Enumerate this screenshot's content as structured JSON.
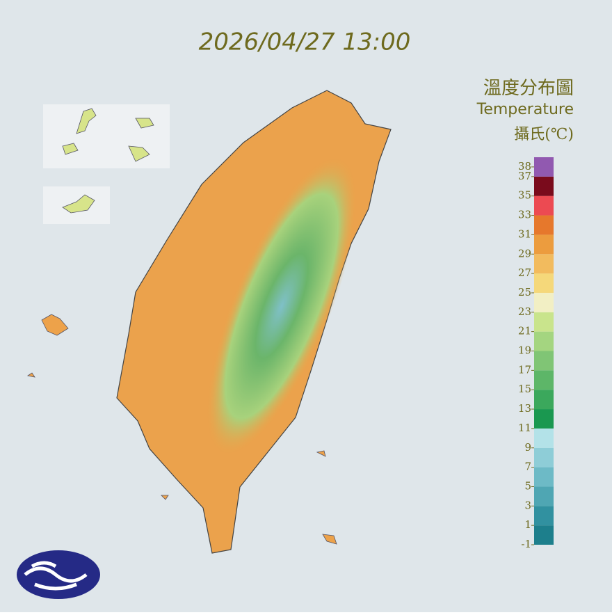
{
  "title": "2026/04/27 13:00",
  "legend": {
    "title_zh": "溫度分布圖",
    "title_en": "Temperature",
    "unit": "攝氏(℃)",
    "range": [
      -1,
      39
    ],
    "ticks": [
      38,
      37,
      35,
      33,
      31,
      29,
      27,
      25,
      23,
      21,
      19,
      17,
      15,
      13,
      11,
      9,
      7,
      5,
      3,
      1,
      -1
    ],
    "bands": {
      "edges": [
        -1,
        1,
        3,
        5,
        7,
        9,
        11,
        13,
        15,
        17,
        19,
        21,
        23,
        25,
        27,
        29,
        31,
        33,
        35,
        37,
        39
      ],
      "colors": [
        "#1d7f8c",
        "#3191a0",
        "#4fa6b3",
        "#6dbac6",
        "#8ecdd7",
        "#b3e2e8",
        "#1a9850",
        "#3ba85c",
        "#5db668",
        "#80c575",
        "#a4d580",
        "#c9e48c",
        "#f2efc4",
        "#f5d87a",
        "#f2bb5e",
        "#ec9c3e",
        "#e6782c",
        "#ec4a52",
        "#7a0b1c",
        "#9159b0"
      ]
    }
  }
}
